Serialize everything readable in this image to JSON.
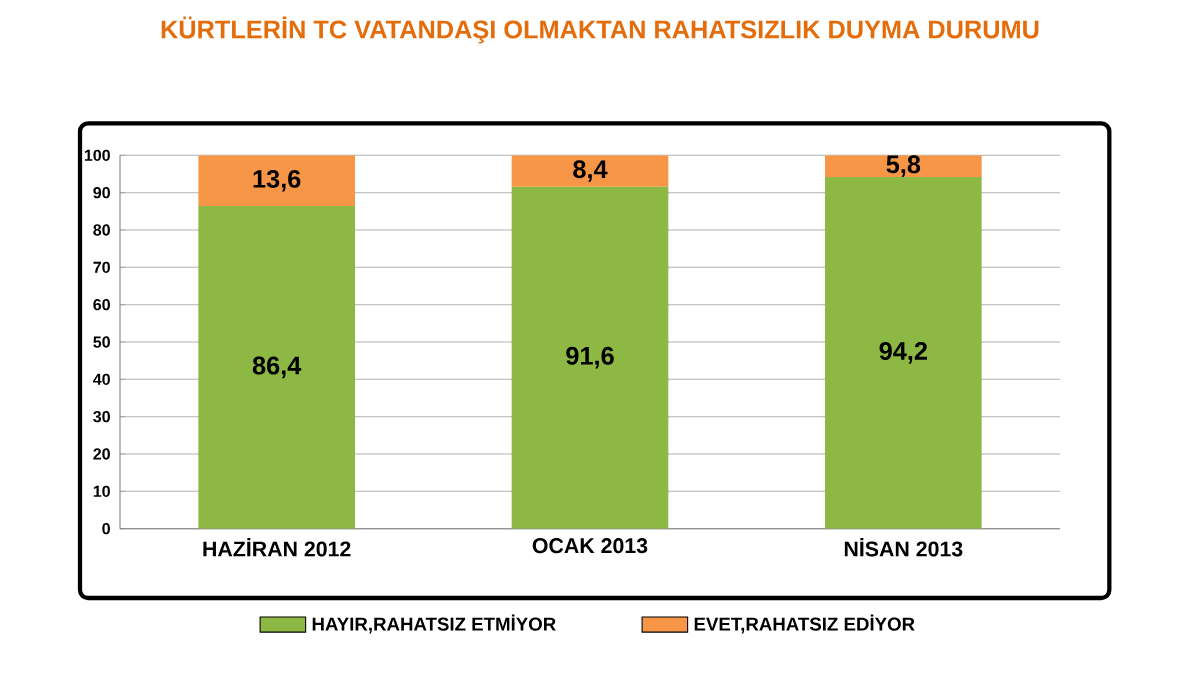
{
  "chart_data": {
    "type": "bar",
    "stacked": true,
    "title": "KÜRTLERİN TC VATANDAŞI OLMAKTAN RAHATSIZLIK DUYMA DURUMU",
    "categories": [
      "HAZİRAN 2012",
      "OCAK 2013",
      "NİSAN 2013"
    ],
    "series": [
      {
        "name": "HAYIR,RAHATSIZ ETMİYOR",
        "color": "#8db843",
        "values": [
          86.4,
          91.6,
          94.2
        ],
        "value_labels": [
          "86,4",
          "91,6",
          "94,2"
        ]
      },
      {
        "name": "EVET,RAHATSIZ EDİYOR",
        "color": "#f79646",
        "values": [
          13.6,
          8.4,
          5.8
        ],
        "value_labels": [
          "13,6",
          "8,4",
          "5,8"
        ]
      }
    ],
    "ylim": [
      0,
      100
    ],
    "yticks": [
      0,
      10,
      20,
      30,
      40,
      50,
      60,
      70,
      80,
      90,
      100
    ],
    "grid": "y",
    "legend": "bottom"
  }
}
